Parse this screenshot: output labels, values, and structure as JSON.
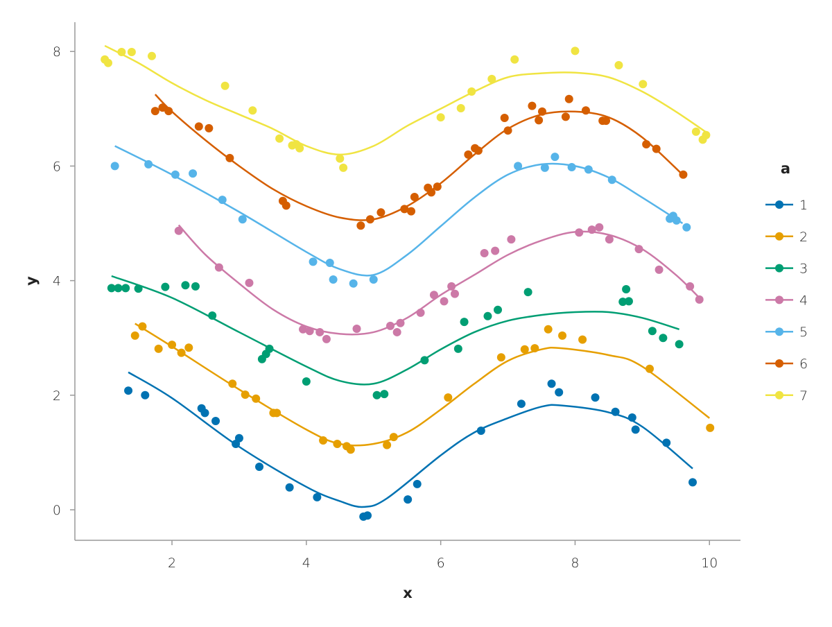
{
  "chart_data": {
    "type": "scatter",
    "title": "",
    "xlabel": "x",
    "ylabel": "y",
    "xlim": [
      0.6,
      10.45
    ],
    "ylim": [
      -0.55,
      8.5
    ],
    "xticks": [
      2,
      4,
      6,
      8,
      10
    ],
    "yticks": [
      0,
      2,
      4,
      6,
      8
    ],
    "xtick_labels": [
      "2",
      "4",
      "6",
      "8",
      "10"
    ],
    "ytick_labels": [
      "0",
      "2",
      "4",
      "6",
      "8"
    ],
    "grid": false,
    "legend": {
      "title": "a",
      "placement": "right"
    },
    "series": [
      {
        "name": "1",
        "color": "#0072B2",
        "points": [
          [
            1.35,
            2.08
          ],
          [
            1.6,
            2.0
          ],
          [
            2.44,
            1.77
          ],
          [
            2.49,
            1.69
          ],
          [
            2.65,
            1.55
          ],
          [
            2.95,
            1.15
          ],
          [
            3.0,
            1.25
          ],
          [
            3.3,
            0.75
          ],
          [
            3.75,
            0.39
          ],
          [
            4.16,
            0.22
          ],
          [
            4.85,
            -0.12
          ],
          [
            4.91,
            -0.1
          ],
          [
            5.51,
            0.18
          ],
          [
            5.65,
            0.45
          ],
          [
            6.6,
            1.38
          ],
          [
            7.2,
            1.85
          ],
          [
            7.65,
            2.2
          ],
          [
            7.76,
            2.05
          ],
          [
            8.3,
            1.96
          ],
          [
            8.6,
            1.71
          ],
          [
            8.85,
            1.61
          ],
          [
            8.9,
            1.4
          ],
          [
            9.36,
            1.17
          ],
          [
            9.75,
            0.48
          ]
        ],
        "fit": [
          [
            1.35,
            2.4
          ],
          [
            2,
            1.95
          ],
          [
            3,
            1.1
          ],
          [
            4,
            0.4
          ],
          [
            4.5,
            0.15
          ],
          [
            4.85,
            0.05
          ],
          [
            5.2,
            0.2
          ],
          [
            6,
            0.95
          ],
          [
            6.5,
            1.35
          ],
          [
            7,
            1.6
          ],
          [
            7.5,
            1.8
          ],
          [
            7.8,
            1.82
          ],
          [
            8.5,
            1.7
          ],
          [
            9,
            1.45
          ],
          [
            9.75,
            0.72
          ]
        ]
      },
      {
        "name": "2",
        "color": "#E69F00",
        "points": [
          [
            1.45,
            3.04
          ],
          [
            1.56,
            3.2
          ],
          [
            1.8,
            2.81
          ],
          [
            2.0,
            2.88
          ],
          [
            2.14,
            2.74
          ],
          [
            2.25,
            2.83
          ],
          [
            2.9,
            2.2
          ],
          [
            3.09,
            2.01
          ],
          [
            3.25,
            1.94
          ],
          [
            3.51,
            1.69
          ],
          [
            3.56,
            1.69
          ],
          [
            4.25,
            1.21
          ],
          [
            4.46,
            1.15
          ],
          [
            4.6,
            1.11
          ],
          [
            4.66,
            1.05
          ],
          [
            5.2,
            1.13
          ],
          [
            5.3,
            1.27
          ],
          [
            6.11,
            1.96
          ],
          [
            6.9,
            2.66
          ],
          [
            7.25,
            2.8
          ],
          [
            7.4,
            2.82
          ],
          [
            7.6,
            3.15
          ],
          [
            7.81,
            3.04
          ],
          [
            8.11,
            2.97
          ],
          [
            9.11,
            2.46
          ],
          [
            10.01,
            1.43
          ]
        ],
        "fit": [
          [
            1.45,
            3.25
          ],
          [
            2,
            2.85
          ],
          [
            3,
            2.1
          ],
          [
            4,
            1.4
          ],
          [
            4.5,
            1.15
          ],
          [
            5,
            1.15
          ],
          [
            5.5,
            1.35
          ],
          [
            6,
            1.75
          ],
          [
            6.5,
            2.2
          ],
          [
            7,
            2.6
          ],
          [
            7.5,
            2.8
          ],
          [
            7.8,
            2.82
          ],
          [
            8.5,
            2.7
          ],
          [
            9,
            2.5
          ],
          [
            10,
            1.6
          ]
        ]
      },
      {
        "name": "3",
        "color": "#009E73",
        "points": [
          [
            1.1,
            3.87
          ],
          [
            1.2,
            3.87
          ],
          [
            1.31,
            3.87
          ],
          [
            1.5,
            3.86
          ],
          [
            1.9,
            3.89
          ],
          [
            2.2,
            3.92
          ],
          [
            2.35,
            3.9
          ],
          [
            2.6,
            3.39
          ],
          [
            3.34,
            2.63
          ],
          [
            3.4,
            2.72
          ],
          [
            3.45,
            2.81
          ],
          [
            4.0,
            2.24
          ],
          [
            5.05,
            2.0
          ],
          [
            5.16,
            2.02
          ],
          [
            5.76,
            2.61
          ],
          [
            6.26,
            2.81
          ],
          [
            6.35,
            3.28
          ],
          [
            6.7,
            3.38
          ],
          [
            6.85,
            3.49
          ],
          [
            7.3,
            3.8
          ],
          [
            8.71,
            3.63
          ],
          [
            8.76,
            3.85
          ],
          [
            8.8,
            3.64
          ],
          [
            9.15,
            3.12
          ],
          [
            9.31,
            3.0
          ],
          [
            9.55,
            2.89
          ]
        ],
        "fit": [
          [
            1.1,
            4.08
          ],
          [
            2,
            3.7
          ],
          [
            3,
            3.1
          ],
          [
            4,
            2.5
          ],
          [
            4.5,
            2.25
          ],
          [
            5,
            2.2
          ],
          [
            5.5,
            2.45
          ],
          [
            6,
            2.8
          ],
          [
            6.5,
            3.1
          ],
          [
            7,
            3.3
          ],
          [
            7.5,
            3.4
          ],
          [
            8,
            3.45
          ],
          [
            8.5,
            3.45
          ],
          [
            9,
            3.35
          ],
          [
            9.55,
            3.15
          ]
        ]
      },
      {
        "name": "4",
        "color": "#CC79A7",
        "points": [
          [
            2.1,
            4.87
          ],
          [
            2.7,
            4.23
          ],
          [
            3.15,
            3.96
          ],
          [
            3.95,
            3.15
          ],
          [
            4.05,
            3.12
          ],
          [
            4.2,
            3.1
          ],
          [
            4.3,
            2.98
          ],
          [
            4.75,
            3.16
          ],
          [
            5.25,
            3.21
          ],
          [
            5.35,
            3.1
          ],
          [
            5.4,
            3.26
          ],
          [
            5.7,
            3.44
          ],
          [
            5.9,
            3.75
          ],
          [
            6.05,
            3.64
          ],
          [
            6.16,
            3.9
          ],
          [
            6.21,
            3.77
          ],
          [
            6.65,
            4.48
          ],
          [
            6.81,
            4.52
          ],
          [
            7.05,
            4.72
          ],
          [
            8.06,
            4.84
          ],
          [
            8.25,
            4.89
          ],
          [
            8.36,
            4.93
          ],
          [
            8.51,
            4.72
          ],
          [
            8.95,
            4.55
          ],
          [
            9.25,
            4.19
          ],
          [
            9.71,
            3.9
          ],
          [
            9.85,
            3.67
          ]
        ],
        "fit": [
          [
            2.1,
            4.97
          ],
          [
            2.5,
            4.45
          ],
          [
            3,
            3.95
          ],
          [
            3.5,
            3.5
          ],
          [
            4,
            3.2
          ],
          [
            4.5,
            3.07
          ],
          [
            5,
            3.1
          ],
          [
            5.5,
            3.35
          ],
          [
            6,
            3.75
          ],
          [
            6.5,
            4.1
          ],
          [
            7,
            4.45
          ],
          [
            7.5,
            4.7
          ],
          [
            8,
            4.85
          ],
          [
            8.5,
            4.8
          ],
          [
            9,
            4.55
          ],
          [
            9.5,
            4.1
          ],
          [
            9.85,
            3.7
          ]
        ]
      },
      {
        "name": "5",
        "color": "#56B4E9",
        "points": [
          [
            1.15,
            6.0
          ],
          [
            1.65,
            6.03
          ],
          [
            2.05,
            5.85
          ],
          [
            2.31,
            5.87
          ],
          [
            2.75,
            5.41
          ],
          [
            3.05,
            5.07
          ],
          [
            4.1,
            4.33
          ],
          [
            4.35,
            4.31
          ],
          [
            4.4,
            4.02
          ],
          [
            4.7,
            3.95
          ],
          [
            5.0,
            4.02
          ],
          [
            7.15,
            6.0
          ],
          [
            7.55,
            5.97
          ],
          [
            7.7,
            6.16
          ],
          [
            7.95,
            5.98
          ],
          [
            8.2,
            5.94
          ],
          [
            8.55,
            5.76
          ],
          [
            9.41,
            5.08
          ],
          [
            9.46,
            5.13
          ],
          [
            9.51,
            5.05
          ],
          [
            9.66,
            4.93
          ]
        ],
        "fit": [
          [
            1.15,
            6.35
          ],
          [
            2,
            5.85
          ],
          [
            3,
            5.2
          ],
          [
            4,
            4.5
          ],
          [
            4.5,
            4.2
          ],
          [
            5,
            4.1
          ],
          [
            5.5,
            4.45
          ],
          [
            6,
            4.95
          ],
          [
            6.5,
            5.45
          ],
          [
            7,
            5.85
          ],
          [
            7.5,
            6.03
          ],
          [
            8,
            6.0
          ],
          [
            8.5,
            5.8
          ],
          [
            9,
            5.45
          ],
          [
            9.6,
            5.0
          ]
        ]
      },
      {
        "name": "6",
        "color": "#D55E00",
        "points": [
          [
            1.75,
            6.96
          ],
          [
            1.86,
            7.02
          ],
          [
            1.95,
            6.96
          ],
          [
            2.4,
            6.69
          ],
          [
            2.55,
            6.66
          ],
          [
            2.86,
            6.14
          ],
          [
            3.65,
            5.39
          ],
          [
            3.7,
            5.31
          ],
          [
            4.81,
            4.96
          ],
          [
            4.95,
            5.07
          ],
          [
            5.11,
            5.19
          ],
          [
            5.46,
            5.25
          ],
          [
            5.56,
            5.21
          ],
          [
            5.61,
            5.46
          ],
          [
            5.81,
            5.62
          ],
          [
            5.86,
            5.54
          ],
          [
            5.95,
            5.64
          ],
          [
            6.41,
            6.2
          ],
          [
            6.51,
            6.31
          ],
          [
            6.56,
            6.27
          ],
          [
            6.95,
            6.84
          ],
          [
            7.0,
            6.62
          ],
          [
            7.36,
            7.05
          ],
          [
            7.46,
            6.8
          ],
          [
            7.51,
            6.95
          ],
          [
            7.86,
            6.86
          ],
          [
            7.91,
            7.17
          ],
          [
            8.16,
            6.97
          ],
          [
            8.41,
            6.79
          ],
          [
            8.46,
            6.79
          ],
          [
            9.06,
            6.38
          ],
          [
            9.21,
            6.3
          ],
          [
            9.61,
            5.85
          ]
        ],
        "fit": [
          [
            1.75,
            7.25
          ],
          [
            2,
            6.95
          ],
          [
            2.5,
            6.45
          ],
          [
            3,
            6.0
          ],
          [
            3.5,
            5.6
          ],
          [
            4,
            5.3
          ],
          [
            4.5,
            5.1
          ],
          [
            5,
            5.07
          ],
          [
            5.5,
            5.3
          ],
          [
            6,
            5.7
          ],
          [
            6.5,
            6.2
          ],
          [
            7,
            6.65
          ],
          [
            7.5,
            6.9
          ],
          [
            8,
            6.95
          ],
          [
            8.5,
            6.85
          ],
          [
            9,
            6.5
          ],
          [
            9.6,
            5.85
          ]
        ]
      },
      {
        "name": "7",
        "color": "#F0E442",
        "points": [
          [
            1.0,
            7.86
          ],
          [
            1.05,
            7.8
          ],
          [
            1.25,
            7.99
          ],
          [
            1.4,
            7.99
          ],
          [
            1.7,
            7.92
          ],
          [
            2.79,
            7.4
          ],
          [
            3.2,
            6.97
          ],
          [
            3.6,
            6.48
          ],
          [
            3.79,
            6.36
          ],
          [
            3.85,
            6.38
          ],
          [
            3.9,
            6.31
          ],
          [
            4.5,
            6.13
          ],
          [
            4.55,
            5.97
          ],
          [
            6.0,
            6.85
          ],
          [
            6.3,
            7.01
          ],
          [
            6.46,
            7.3
          ],
          [
            6.76,
            7.52
          ],
          [
            7.1,
            7.86
          ],
          [
            8.0,
            8.01
          ],
          [
            8.65,
            7.76
          ],
          [
            9.01,
            7.43
          ],
          [
            9.8,
            6.6
          ],
          [
            9.9,
            6.46
          ],
          [
            9.95,
            6.54
          ]
        ],
        "fit": [
          [
            1,
            8.1
          ],
          [
            1.5,
            7.8
          ],
          [
            2,
            7.45
          ],
          [
            2.5,
            7.15
          ],
          [
            3,
            6.9
          ],
          [
            3.5,
            6.65
          ],
          [
            4,
            6.35
          ],
          [
            4.5,
            6.2
          ],
          [
            5,
            6.35
          ],
          [
            5.5,
            6.7
          ],
          [
            6,
            7.0
          ],
          [
            6.5,
            7.3
          ],
          [
            7,
            7.55
          ],
          [
            7.5,
            7.62
          ],
          [
            8,
            7.63
          ],
          [
            8.5,
            7.55
          ],
          [
            9,
            7.3
          ],
          [
            9.5,
            6.95
          ],
          [
            10,
            6.55
          ]
        ]
      }
    ]
  }
}
